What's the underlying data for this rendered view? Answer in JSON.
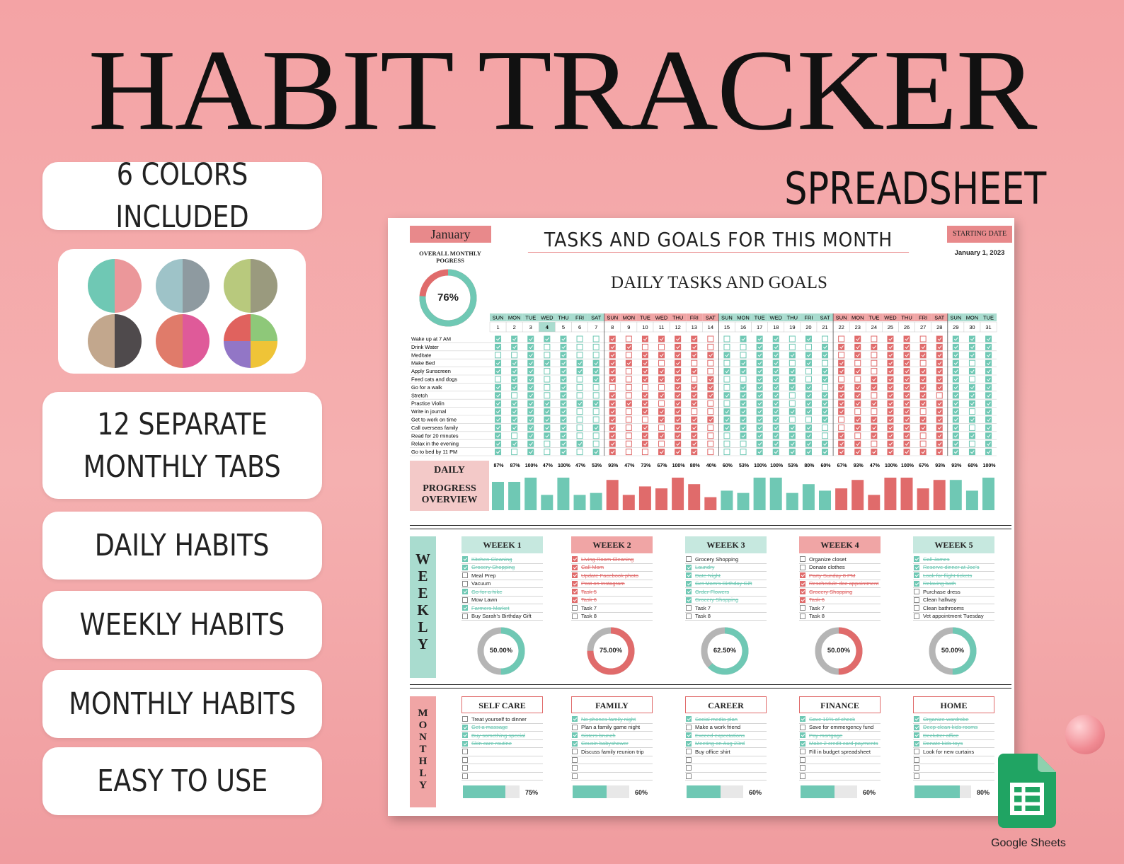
{
  "title": "HABIT TRACKER",
  "subtitle": "SPREADSHEET",
  "features": [
    {
      "line1": "6 COLORS INCLUDED",
      "line2": ""
    },
    {
      "line1": "12 SEPARATE",
      "line2": "MONTHLY TABS"
    },
    {
      "line1": "DAILY HABITS",
      "line2": ""
    },
    {
      "line1": "WEEKLY HABITS",
      "line2": ""
    },
    {
      "line1": "MONTHLY HABITS",
      "line2": ""
    },
    {
      "line1": "EASY TO USE",
      "line2": ""
    }
  ],
  "color_swatches": [
    [
      "#6fc8b4",
      "#eb979a"
    ],
    [
      "#9ec3c8",
      "#8e9aa0"
    ],
    [
      "#b8c97d",
      "#9a9a7e"
    ],
    [
      "#c2a78d",
      "#4f4a4c"
    ],
    [
      "#e07b6a",
      "#df5a99"
    ],
    [
      "#e0625e",
      "#8ec879",
      "#9276c6",
      "#efc437"
    ]
  ],
  "sheet": {
    "month": "January",
    "tasks_heading": "TASKS AND GOALS FOR THIS MONTH",
    "starting_date_label": "STARTING DATE",
    "starting_date": "January 1, 2023",
    "overall_label": "OVERALL MONTHLY POGRESS",
    "overall_pct": "76%",
    "overall_value": 0.76,
    "daily_heading": "DAILY TASKS AND GOALS",
    "days_of_week": [
      "SUN",
      "MON",
      "TUE",
      "WED",
      "THU",
      "FRI",
      "SAT",
      "SUN",
      "MON",
      "TUE",
      "WED",
      "THU",
      "FRI",
      "SAT",
      "SUN",
      "MON",
      "TUE",
      "WED",
      "THU",
      "FRI",
      "SAT",
      "SUN",
      "MON",
      "TUE",
      "WED",
      "THU",
      "FRI",
      "SAT",
      "SUN",
      "MON",
      "TUE"
    ],
    "habits": [
      "Wake up at 7 AM",
      "Drink Water",
      "Meditate",
      "Make Bed",
      "Apply Sunscreen",
      "Feed cats and dogs",
      "Go for a walk",
      "Stretch",
      "Practice Violin",
      "Write in journal",
      "Get to work on time",
      "Call overseas family",
      "Read for 20 minutes",
      "Relax in the evening",
      "Go to bed by 11 PM"
    ],
    "daily_progress_label": [
      "DAILY",
      "PROGRESS",
      "OVERVIEW"
    ],
    "daily_pct": [
      "87%",
      "87%",
      "100%",
      "47%",
      "100%",
      "47%",
      "53%",
      "93%",
      "47%",
      "73%",
      "67%",
      "100%",
      "80%",
      "40%",
      "60%",
      "53%",
      "100%",
      "100%",
      "53%",
      "80%",
      "60%",
      "67%",
      "93%",
      "47%",
      "100%",
      "100%",
      "67%",
      "93%",
      "93%",
      "60%",
      "100%"
    ],
    "daily_values": [
      87,
      87,
      100,
      47,
      100,
      47,
      53,
      93,
      47,
      73,
      67,
      100,
      80,
      40,
      60,
      53,
      100,
      100,
      53,
      80,
      60,
      67,
      93,
      47,
      100,
      100,
      67,
      93,
      93,
      60,
      100
    ],
    "weekly_label": [
      "W",
      "E",
      "E",
      "K",
      "L",
      "Y"
    ],
    "weeks": [
      {
        "title": "WEEEK 1",
        "color": "#6fc8b4",
        "head_bg": "#c6e8df",
        "pct": "50.00%",
        "value": 0.5,
        "items": [
          [
            "Kitchen Cleaning",
            1
          ],
          [
            "Grocery Shopping",
            1
          ],
          [
            "Meal Prep",
            0
          ],
          [
            "Vacuum",
            0
          ],
          [
            "Go for a hike",
            1
          ],
          [
            "Mow Lawn",
            0
          ],
          [
            "Farmers Market",
            1
          ],
          [
            "Buy Sarah's Birthday Gift",
            0
          ]
        ]
      },
      {
        "title": "WEEEK 2",
        "color": "#e06b6b",
        "head_bg": "#f0a5a5",
        "pct": "75.00%",
        "value": 0.75,
        "items": [
          [
            "Living Room Cleaning",
            1
          ],
          [
            "Call Mom",
            1
          ],
          [
            "Update Facebook photo",
            1
          ],
          [
            "Post on Instagram",
            1
          ],
          [
            "Task 5",
            1
          ],
          [
            "Task 6",
            1
          ],
          [
            "Task 7",
            0
          ],
          [
            "Task 8",
            0
          ]
        ]
      },
      {
        "title": "WEEEK 3",
        "color": "#6fc8b4",
        "head_bg": "#c6e8df",
        "pct": "62.50%",
        "value": 0.625,
        "items": [
          [
            "Grocery Shopping",
            0
          ],
          [
            "Laundry",
            1
          ],
          [
            "Date Night",
            1
          ],
          [
            "Get Mom's Birthday Gift",
            1
          ],
          [
            "Order Flowers",
            1
          ],
          [
            "Grocery Shopping",
            1
          ],
          [
            "Task 7",
            0
          ],
          [
            "Task 8",
            0
          ]
        ]
      },
      {
        "title": "WEEEK 4",
        "color": "#e06b6b",
        "head_bg": "#f0a5a5",
        "pct": "50.00%",
        "value": 0.5,
        "items": [
          [
            "Organize closet",
            0
          ],
          [
            "Donate clothes",
            0
          ],
          [
            "Party Sunday 8 PM",
            1
          ],
          [
            "Reschedule doc appointment",
            1
          ],
          [
            "Grocery Shopping",
            1
          ],
          [
            "Task 6",
            1
          ],
          [
            "Task 7",
            0
          ],
          [
            "Task 8",
            0
          ]
        ]
      },
      {
        "title": "WEEEK 5",
        "color": "#6fc8b4",
        "head_bg": "#c6e8df",
        "pct": "50.00%",
        "value": 0.5,
        "items": [
          [
            "Call James",
            1
          ],
          [
            "Reserve dinner at Joe's",
            1
          ],
          [
            "Look for flight tickets",
            1
          ],
          [
            "Relaxing bath",
            1
          ],
          [
            "Purchase dress",
            0
          ],
          [
            "Clean hallway",
            0
          ],
          [
            "Clean bathrooms",
            0
          ],
          [
            "Vet appointment Tuesday",
            0
          ]
        ]
      }
    ],
    "monthly_label": [
      "M",
      "O",
      "N",
      "T",
      "H",
      "L",
      "Y"
    ],
    "categories": [
      {
        "title": "SELF CARE",
        "pct": "75%",
        "value": 0.75,
        "items": [
          [
            "Treat yourself to dinner",
            0
          ],
          [
            "Get a massage",
            1
          ],
          [
            "Buy something special",
            1
          ],
          [
            "Skin care routine",
            1
          ]
        ]
      },
      {
        "title": "FAMILY",
        "pct": "60%",
        "value": 0.6,
        "items": [
          [
            "No phones family night",
            1
          ],
          [
            "Plan a family game night",
            0
          ],
          [
            "Sisters brunch",
            1
          ],
          [
            "Cousin babyshower",
            1
          ],
          [
            "Discuss family reunion trip",
            0
          ]
        ]
      },
      {
        "title": "CAREER",
        "pct": "60%",
        "value": 0.6,
        "items": [
          [
            "Social media plan",
            1
          ],
          [
            "Make a work friend",
            0
          ],
          [
            "Exceed expectations",
            1
          ],
          [
            "Meeting on Aug 23rd",
            1
          ],
          [
            "Buy office shirt",
            0
          ]
        ]
      },
      {
        "title": "FINANCE",
        "pct": "60%",
        "value": 0.6,
        "items": [
          [
            "Save 10% of check",
            1
          ],
          [
            "Save for emmergency fund",
            0
          ],
          [
            "Pay mortgage",
            1
          ],
          [
            "Make 2 credit card payments",
            1
          ],
          [
            "Fill in budget spreadsheet",
            0
          ]
        ]
      },
      {
        "title": "HOME",
        "pct": "80%",
        "value": 0.8,
        "items": [
          [
            "Organize wardrobe",
            1
          ],
          [
            "Deep clean kids rooms",
            1
          ],
          [
            "Declutter office",
            1
          ],
          [
            "Donate kids toys",
            1
          ],
          [
            "Look for new curtains",
            0
          ]
        ]
      }
    ]
  },
  "google_sheets_label": "Google Sheets",
  "colors": {
    "teal": "#6fc8b4",
    "coral": "#e06b6b",
    "gray": "#b5b5b5"
  }
}
